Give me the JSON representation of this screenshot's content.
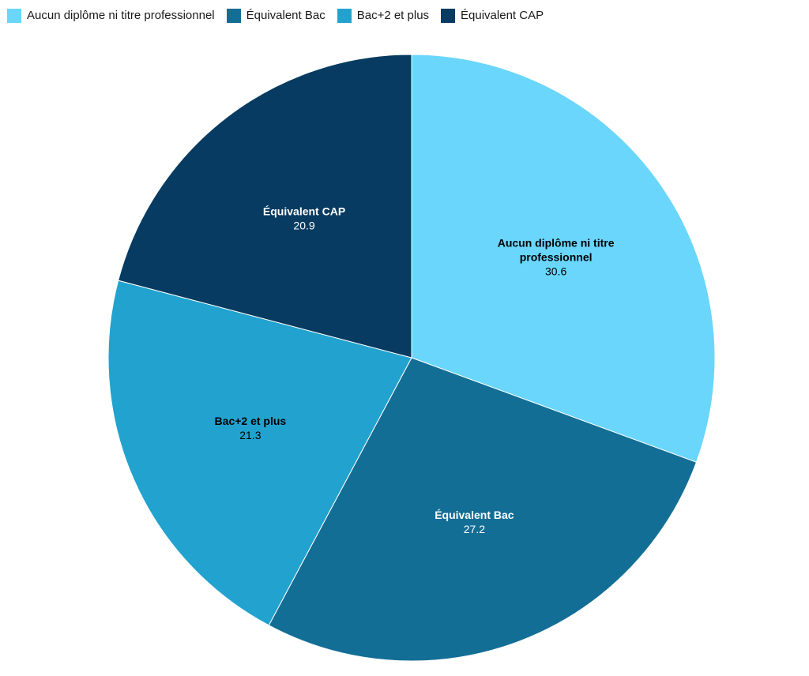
{
  "chart_data": {
    "type": "pie",
    "categories": [
      "Aucun diplôme ni titre professionnel",
      "Équivalent Bac",
      "Bac+2 et plus",
      "Équivalent CAP"
    ],
    "values": [
      30.6,
      27.2,
      21.3,
      20.9
    ],
    "value_labels": [
      "30.6",
      "27.2",
      "21.3",
      "20.9"
    ],
    "slice_label_lines": [
      [
        "Aucun diplôme ni titre",
        "professionnel"
      ],
      [
        "Équivalent Bac"
      ],
      [
        "Bac+2 et plus"
      ],
      [
        "Équivalent CAP"
      ]
    ],
    "colors": [
      "#6AD6FC",
      "#136E96",
      "#22A2CF",
      "#073B61"
    ],
    "label_colors": [
      "#000000",
      "#ffffff",
      "#000000",
      "#ffffff"
    ],
    "start_angle": "12 o'clock",
    "direction": "clockwise",
    "legend_position": "top-left",
    "title": "",
    "xlabel": "",
    "ylabel": ""
  }
}
